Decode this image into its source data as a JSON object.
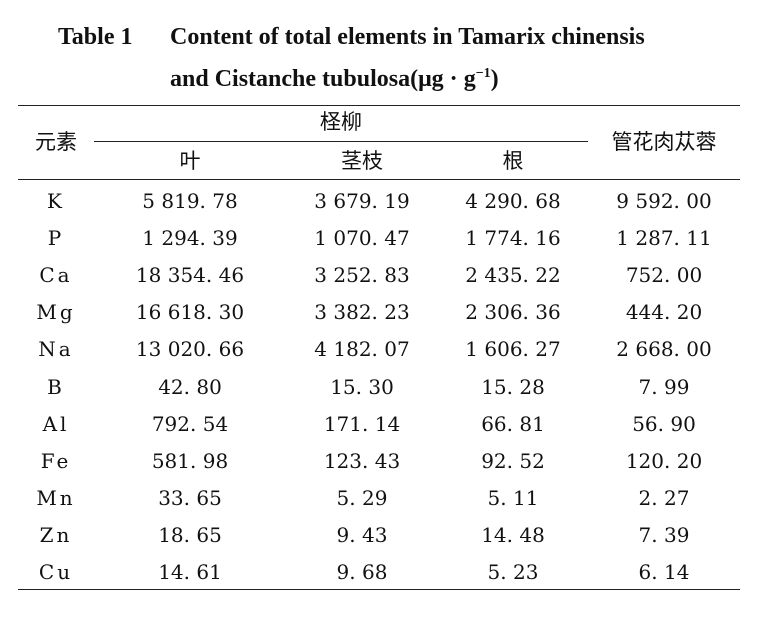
{
  "caption": {
    "label": "Table 1",
    "line1": "Content of total elements in Tamarix chinensis",
    "line2_text": "and Cistanche tubulosa(",
    "unit_mu": "μ",
    "unit_g": "g",
    "unit_dot": "·",
    "unit_g2": "g",
    "unit_exp": "−1",
    "unit_close": ")"
  },
  "headers": {
    "element": "元素",
    "tamarix": "柽柳",
    "leaf": "叶",
    "stem": "茎枝",
    "root": "根",
    "cistanche": "管花肉苁蓉"
  },
  "rows": [
    {
      "element": "K",
      "leaf": "5 819. 78",
      "stem": "3 679. 19",
      "root": "4 290. 68",
      "cistanche": "9 592. 00"
    },
    {
      "element": "P",
      "leaf": "1 294. 39",
      "stem": "1 070. 47",
      "root": "1 774. 16",
      "cistanche": "1 287. 11"
    },
    {
      "element": "Ca",
      "leaf": "18 354. 46",
      "stem": "3 252. 83",
      "root": "2 435. 22",
      "cistanche": "752. 00"
    },
    {
      "element": "Mg",
      "leaf": "16 618. 30",
      "stem": "3 382. 23",
      "root": "2 306. 36",
      "cistanche": "444. 20"
    },
    {
      "element": "Na",
      "leaf": "13 020. 66",
      "stem": "4 182. 07",
      "root": "1 606. 27",
      "cistanche": "2 668. 00"
    },
    {
      "element": "B",
      "leaf": "42. 80",
      "stem": "15. 30",
      "root": "15. 28",
      "cistanche": "7. 99"
    },
    {
      "element": "Al",
      "leaf": "792. 54",
      "stem": "171. 14",
      "root": "66. 81",
      "cistanche": "56. 90"
    },
    {
      "element": "Fe",
      "leaf": "581. 98",
      "stem": "123. 43",
      "root": "92. 52",
      "cistanche": "120. 20"
    },
    {
      "element": "Mn",
      "leaf": "33. 65",
      "stem": "5. 29",
      "root": "5. 11",
      "cistanche": "2. 27"
    },
    {
      "element": "Zn",
      "leaf": "18. 65",
      "stem": "9. 43",
      "root": "14. 48",
      "cistanche": "7. 39"
    },
    {
      "element": "Cu",
      "leaf": "14. 61",
      "stem": "9. 68",
      "root": "5. 23",
      "cistanche": "6. 14"
    }
  ]
}
